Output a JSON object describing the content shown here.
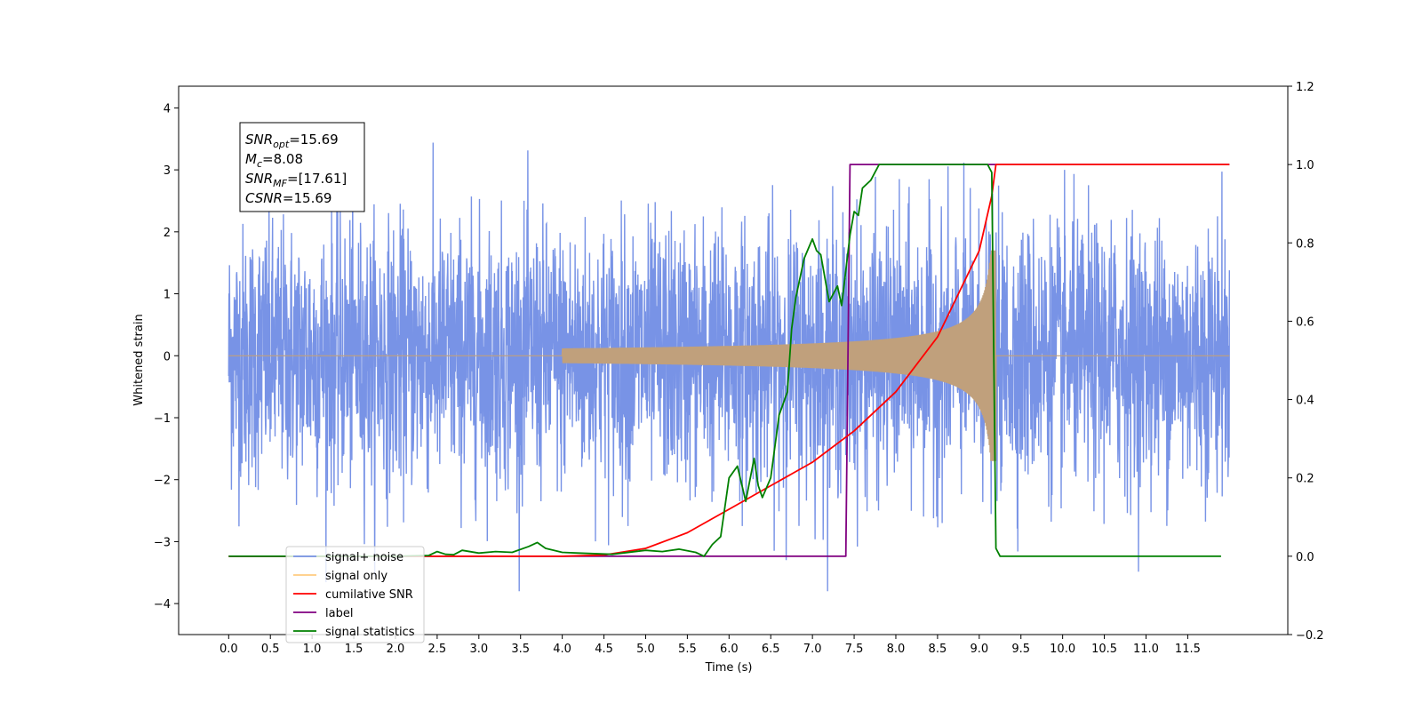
{
  "chart_data": {
    "type": "line",
    "xlabel": "Time (s)",
    "ylabel": "Whitened strain",
    "xlim": [
      -0.6,
      12.7
    ],
    "ylim_left": [
      -4.5,
      4.35
    ],
    "ylim_right": [
      -0.2,
      1.2
    ],
    "x_ticks": [
      0.0,
      0.5,
      1.0,
      1.5,
      2.0,
      2.5,
      3.0,
      3.5,
      4.0,
      4.5,
      5.0,
      5.5,
      6.0,
      6.5,
      7.0,
      7.5,
      8.0,
      8.5,
      9.0,
      9.5,
      10.0,
      10.5,
      11.0,
      11.5
    ],
    "x_tick_labels": [
      "0.0",
      "0.5",
      "1.0",
      "1.5",
      "2.0",
      "2.5",
      "3.0",
      "3.5",
      "4.0",
      "4.5",
      "5.0",
      "5.5",
      "6.0",
      "6.5",
      "7.0",
      "7.5",
      "8.0",
      "8.5",
      "9.0",
      "9.5",
      "10.0",
      "10.5",
      "11.0",
      "11.5"
    ],
    "y_left_ticks": [
      4,
      3,
      2,
      1,
      0,
      -1,
      -2,
      -3,
      -4
    ],
    "y_left_tick_labels": [
      "4",
      "3",
      "2",
      "1",
      "0",
      "−1",
      "−2",
      "−3",
      "−4"
    ],
    "y_right_ticks": [
      1.2,
      1.0,
      0.8,
      0.6,
      0.4,
      0.2,
      0.0,
      -0.2
    ],
    "y_right_tick_labels": [
      "1.2",
      "1.0",
      "0.8",
      "0.6",
      "0.4",
      "0.2",
      "0.0",
      "−0.2"
    ],
    "grid": false,
    "legend_position": "bottom-left",
    "annotation_box": [
      {
        "base": "SNR",
        "sub": "opt",
        "value": "=15.69"
      },
      {
        "base": "M",
        "sub": "c",
        "value": "=8.08"
      },
      {
        "base": "SNR",
        "sub": "MF",
        "value": "=[17.61]"
      },
      {
        "base": "CSNR",
        "sub": "",
        "value": "=15.69"
      }
    ],
    "series": [
      {
        "name": "signal+ noise",
        "color": "#7893e6",
        "axis": "left",
        "description": "whitened noisy strain spanning 0 to 12 s, amplitude roughly ±2 with spikes to ±3.5",
        "noise_sigma": 1.05,
        "x_range": [
          0.0,
          12.0
        ]
      },
      {
        "name": "signal only",
        "color": "#c0a07c",
        "axis": "left",
        "chirp_start": 4.0,
        "merger_time": 9.2,
        "peak_amplitude": 1.7,
        "x_range": [
          0.0,
          12.0
        ]
      },
      {
        "name": "cumilative SNR",
        "color": "#ff0000",
        "axis": "right",
        "x": [
          0.0,
          4.0,
          4.5,
          5.0,
          5.5,
          6.0,
          6.5,
          7.0,
          7.5,
          8.0,
          8.5,
          9.0,
          9.15,
          9.2,
          12.0
        ],
        "y": [
          0.0,
          0.0,
          0.003,
          0.02,
          0.06,
          0.12,
          0.18,
          0.24,
          0.32,
          0.42,
          0.56,
          0.78,
          0.92,
          1.0,
          1.0
        ]
      },
      {
        "name": "label",
        "color": "#800080",
        "axis": "right",
        "x": [
          0.0,
          7.4,
          7.45,
          9.2,
          9.22,
          12.0
        ],
        "y": [
          0.0,
          0.0,
          1.0,
          1.0,
          1.0,
          1.0
        ]
      },
      {
        "name": "signal statistics",
        "color": "#008000",
        "axis": "right",
        "x": [
          0.0,
          2.0,
          2.4,
          2.5,
          2.6,
          2.7,
          2.8,
          3.0,
          3.2,
          3.4,
          3.6,
          3.7,
          3.8,
          3.9,
          4.0,
          4.2,
          4.6,
          5.0,
          5.2,
          5.4,
          5.6,
          5.7,
          5.8,
          5.9,
          6.0,
          6.1,
          6.2,
          6.3,
          6.35,
          6.4,
          6.5,
          6.6,
          6.7,
          6.75,
          6.8,
          6.9,
          7.0,
          7.05,
          7.1,
          7.2,
          7.3,
          7.35,
          7.4,
          7.45,
          7.5,
          7.55,
          7.6,
          7.7,
          7.8,
          7.85,
          7.9,
          8.0,
          9.1,
          9.15,
          9.2,
          9.25,
          9.3,
          11.9
        ],
        "y": [
          0.0,
          0.0,
          0.002,
          0.012,
          0.005,
          0.004,
          0.015,
          0.008,
          0.012,
          0.01,
          0.025,
          0.035,
          0.02,
          0.015,
          0.01,
          0.008,
          0.005,
          0.015,
          0.012,
          0.018,
          0.01,
          0.0,
          0.03,
          0.05,
          0.2,
          0.23,
          0.14,
          0.25,
          0.18,
          0.15,
          0.2,
          0.36,
          0.42,
          0.58,
          0.66,
          0.76,
          0.81,
          0.78,
          0.77,
          0.65,
          0.69,
          0.64,
          0.73,
          0.82,
          0.88,
          0.87,
          0.94,
          0.96,
          1.0,
          1.0,
          1.0,
          1.0,
          1.0,
          0.98,
          0.02,
          0.0,
          0.0,
          0.0
        ]
      }
    ],
    "legend": [
      {
        "label": "signal+ noise",
        "color": "#7893e6"
      },
      {
        "label": "signal only",
        "color": "#ffcc80"
      },
      {
        "label": "cumilative SNR",
        "color": "#ff0000"
      },
      {
        "label": "label",
        "color": "#800080"
      },
      {
        "label": "signal statistics",
        "color": "#008000"
      }
    ]
  }
}
